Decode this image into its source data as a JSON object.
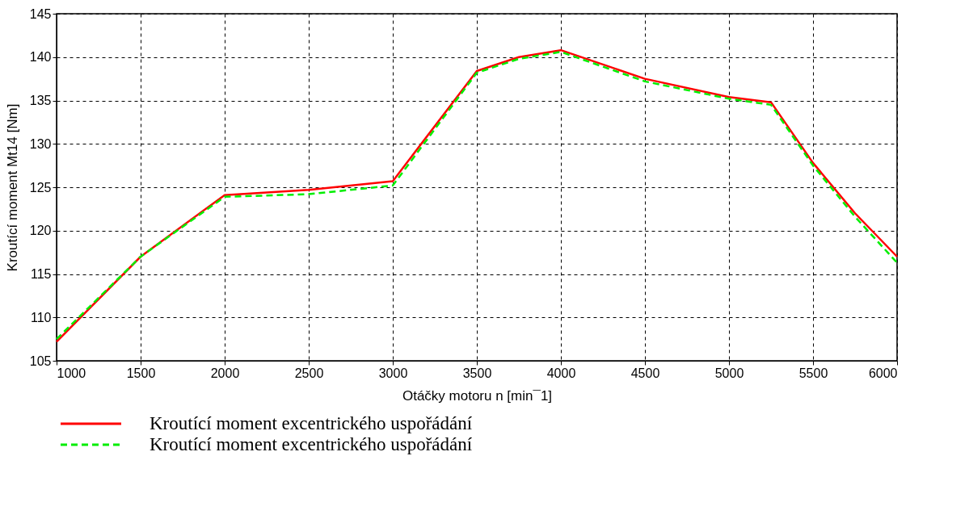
{
  "chart_data": {
    "type": "line",
    "xlabel": "Otáčky motoru   n [min¯1]",
    "ylabel": "Kroutící moment   Mt14 [Nm]",
    "xlim": [
      1000,
      6000
    ],
    "xticks": [
      1000,
      1500,
      2000,
      2500,
      3000,
      3500,
      4000,
      4500,
      5000,
      5500,
      6000
    ],
    "ylim": [
      105,
      145
    ],
    "yticks": [
      105,
      110,
      115,
      120,
      125,
      130,
      135,
      140,
      145
    ],
    "grid": true,
    "legend": "bottom left",
    "series": [
      {
        "name": "Kroutící moment excentrického uspořádání",
        "color": "#ff0000",
        "line_style": "solid",
        "x": [
          1000,
          1500,
          2000,
          2500,
          3000,
          3500,
          3750,
          4000,
          4500,
          5000,
          5250,
          5500,
          5750,
          6000
        ],
        "values": [
          107.2,
          117,
          124.1,
          124.7,
          125.7,
          138.4,
          140,
          140.8,
          137.5,
          135.4,
          134.8,
          127.8,
          122,
          117
        ]
      },
      {
        "name": "Kroutící moment excentrického uspořádání",
        "color": "#00ee00",
        "line_style": "dashed",
        "x": [
          1000,
          1500,
          2000,
          2500,
          3000,
          3500,
          3750,
          4000,
          4500,
          5000,
          5250,
          5500,
          5750,
          6000
        ],
        "values": [
          107.5,
          117,
          123.9,
          124.2,
          125.2,
          138.2,
          139.8,
          140.6,
          137.2,
          135.2,
          134.5,
          127.5,
          121.6,
          116.3
        ]
      }
    ]
  }
}
